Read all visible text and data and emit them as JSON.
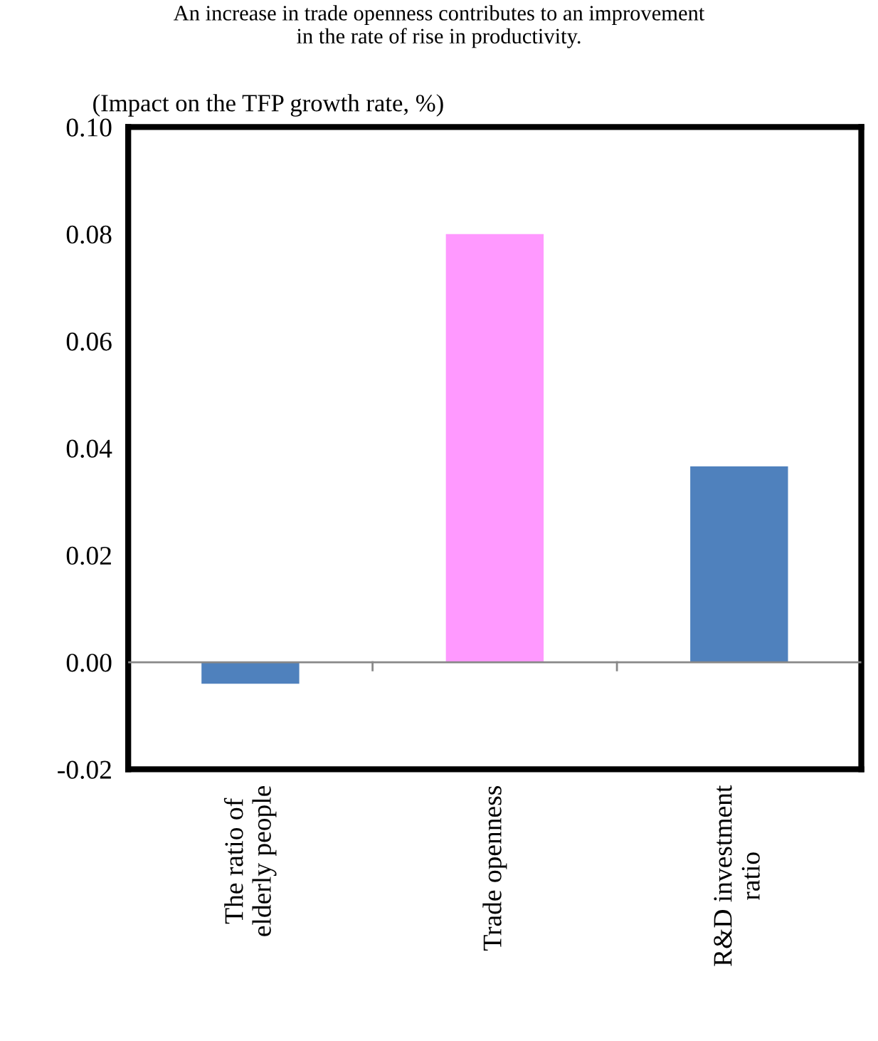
{
  "chart_data": {
    "type": "bar",
    "title": "An increase in trade openness contributes to an improvement\nin the rate of rise in productivity.",
    "ylabel": "(Impact on the TFP growth rate, %)",
    "categories": [
      "The ratio of\nelderly people",
      "Trade openness",
      "R&D investment\nratio"
    ],
    "values": [
      -0.004,
      0.08,
      0.0366
    ],
    "colors": [
      "#4f81bd",
      "#ff99ff",
      "#4f81bd"
    ],
    "ylim": [
      -0.02,
      0.1
    ],
    "yticks": [
      {
        "value": -0.02,
        "label": "-0.02"
      },
      {
        "value": 0.0,
        "label": "0.00"
      },
      {
        "value": 0.02,
        "label": "0.02"
      },
      {
        "value": 0.04,
        "label": "0.04"
      },
      {
        "value": 0.06,
        "label": "0.06"
      },
      {
        "value": 0.08,
        "label": "0.08"
      },
      {
        "value": 0.1,
        "label": "0.10"
      }
    ],
    "legend": false
  }
}
